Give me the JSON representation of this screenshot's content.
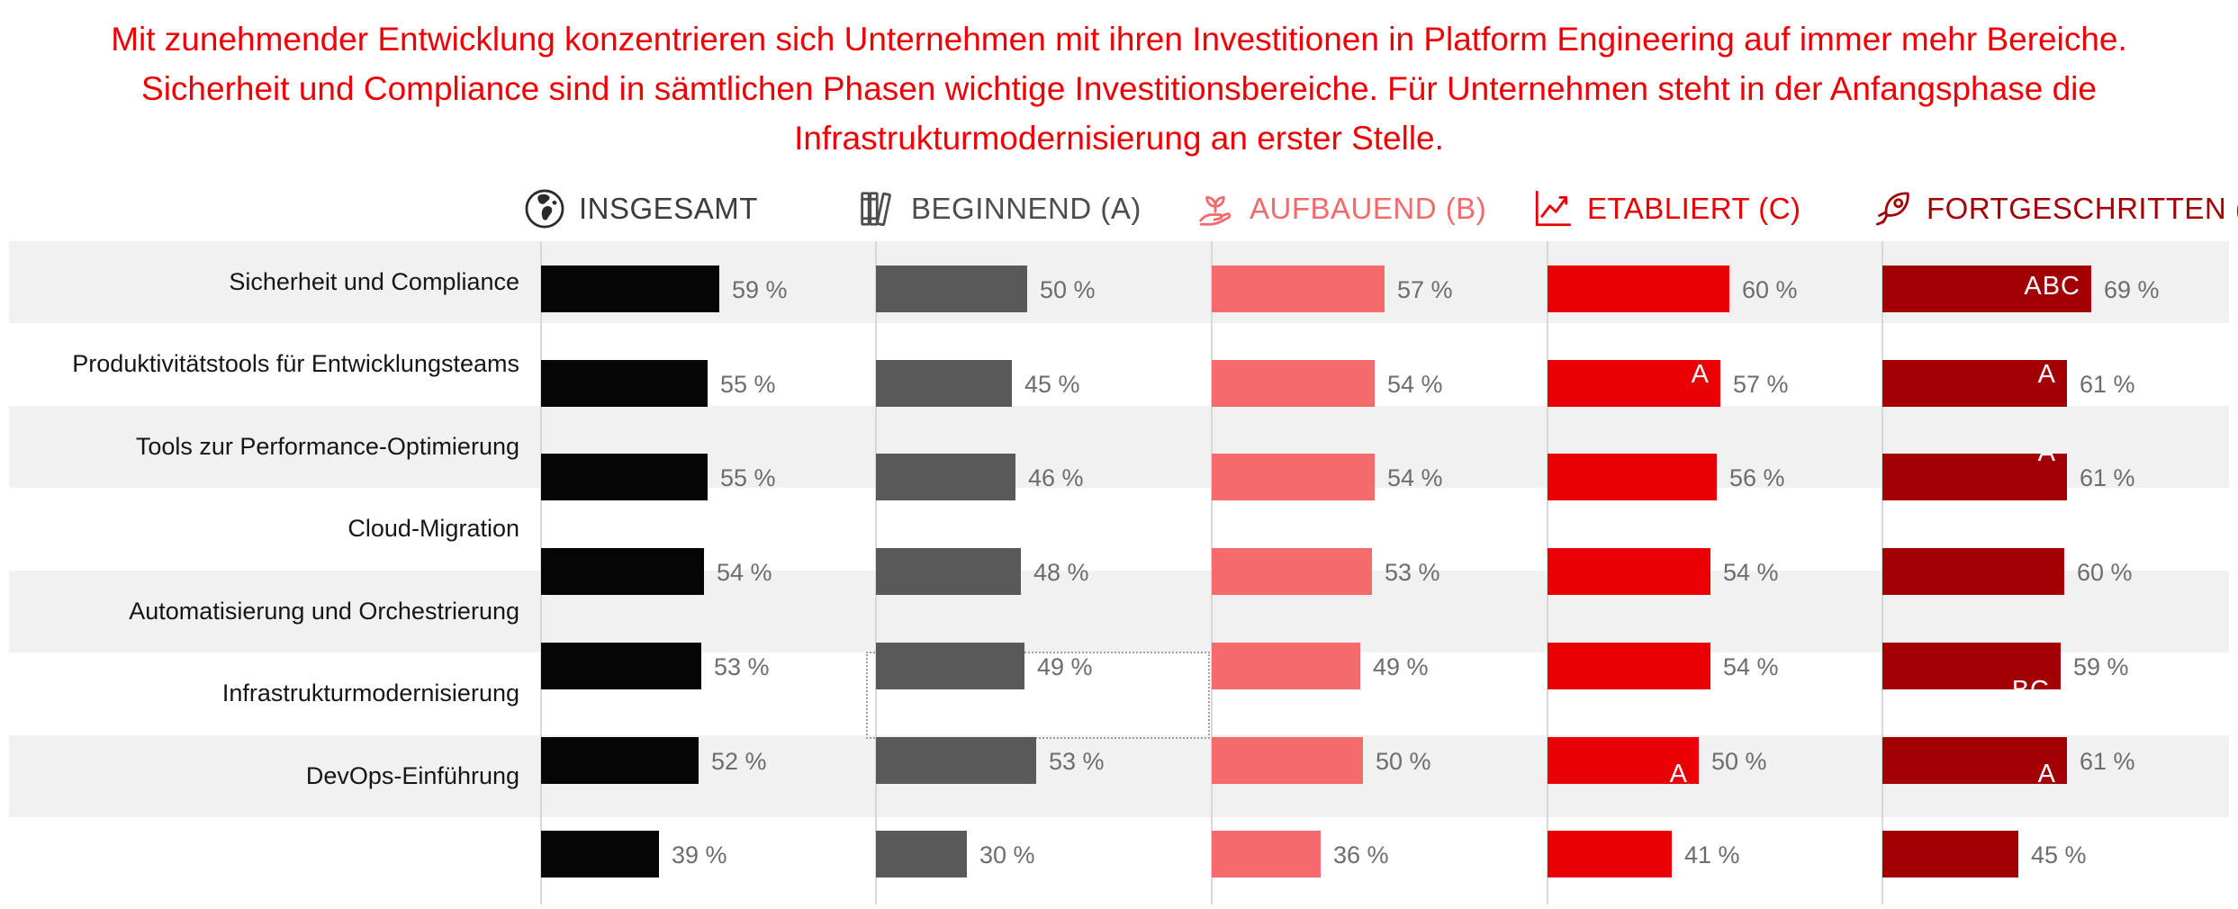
{
  "title": {
    "line1": "Mit zunehmender Entwicklung konzentrieren sich Unternehmen mit ihren Investitionen in Platform Engineering auf immer mehr Bereiche.",
    "line2": "Sicherheit und Compliance sind in sämtlichen Phasen wichtige Investitionsbereiche. Für Unternehmen steht in der Anfangsphase die",
    "line3": "Infrastrukturmodernisierung an erster Stelle."
  },
  "columns": [
    {
      "id": "insgesamt",
      "label": "INSGESAMT",
      "icon": "globe-icon",
      "bar_color": "#050505",
      "text_color": "#3c3c3c"
    },
    {
      "id": "beginnend",
      "label": "BEGINNEND (A)",
      "icon": "books-icon",
      "bar_color": "#595959",
      "text_color": "#4d4d4d"
    },
    {
      "id": "aufbauend",
      "label": "AUFBAUEND (B)",
      "icon": "sprout-hand-icon",
      "bar_color": "#f56a6b",
      "text_color": "#f4696b"
    },
    {
      "id": "etabliert",
      "label": "ETABLIERT (C)",
      "icon": "growth-chart-icon",
      "bar_color": "#e80004",
      "text_color": "#e80004"
    },
    {
      "id": "fortgeschritten",
      "label": "FORTGESCHRITTEN (D)",
      "icon": "rocket-icon",
      "bar_color": "#a30005",
      "text_color": "#a30005"
    }
  ],
  "chart_data": {
    "type": "bar",
    "orientation": "horizontal",
    "unit": "%",
    "value_suffix": " %",
    "xlim": [
      0,
      100
    ],
    "categories": [
      "Sicherheit und Compliance",
      "Produktivitätstools für Entwicklungsteams",
      "Tools zur Performance-Optimierung",
      "Cloud-Migration",
      "Automatisierung und Orchestrierung",
      "Infrastrukturmodernisierung",
      "DevOps-Einführung"
    ],
    "series": [
      {
        "name": "INSGESAMT",
        "values": [
          59,
          55,
          55,
          54,
          53,
          52,
          39
        ]
      },
      {
        "name": "BEGINNEND (A)",
        "values": [
          50,
          45,
          46,
          48,
          49,
          53,
          30
        ]
      },
      {
        "name": "AUFBAUEND (B)",
        "values": [
          57,
          54,
          54,
          53,
          49,
          50,
          36
        ]
      },
      {
        "name": "ETABLIERT (C)",
        "values": [
          60,
          57,
          56,
          54,
          54,
          50,
          41
        ]
      },
      {
        "name": "FORTGESCHRITTEN (D)",
        "values": [
          69,
          61,
          61,
          60,
          59,
          61,
          45
        ]
      }
    ],
    "annotations": [
      {
        "row": 0,
        "col": 4,
        "text": "ABC",
        "pos": "mid"
      },
      {
        "row": 1,
        "col": 3,
        "text": "A",
        "pos": "top"
      },
      {
        "row": 1,
        "col": 4,
        "text": "A",
        "pos": "top"
      },
      {
        "row": 2,
        "col": 4,
        "text": "A",
        "pos": "straddle-top"
      },
      {
        "row": 4,
        "col": 4,
        "text": "BC",
        "pos": "peek-top"
      },
      {
        "row": 5,
        "col": 3,
        "text": "A",
        "pos": "bottom-cut"
      },
      {
        "row": 5,
        "col": 4,
        "text": "A",
        "pos": "bottom-cut"
      }
    ],
    "highlight": {
      "category": "Infrastrukturmodernisierung",
      "series": "BEGINNEND (A)",
      "style": "dotted-box"
    },
    "row_stripes": true,
    "legend_position": "top"
  }
}
